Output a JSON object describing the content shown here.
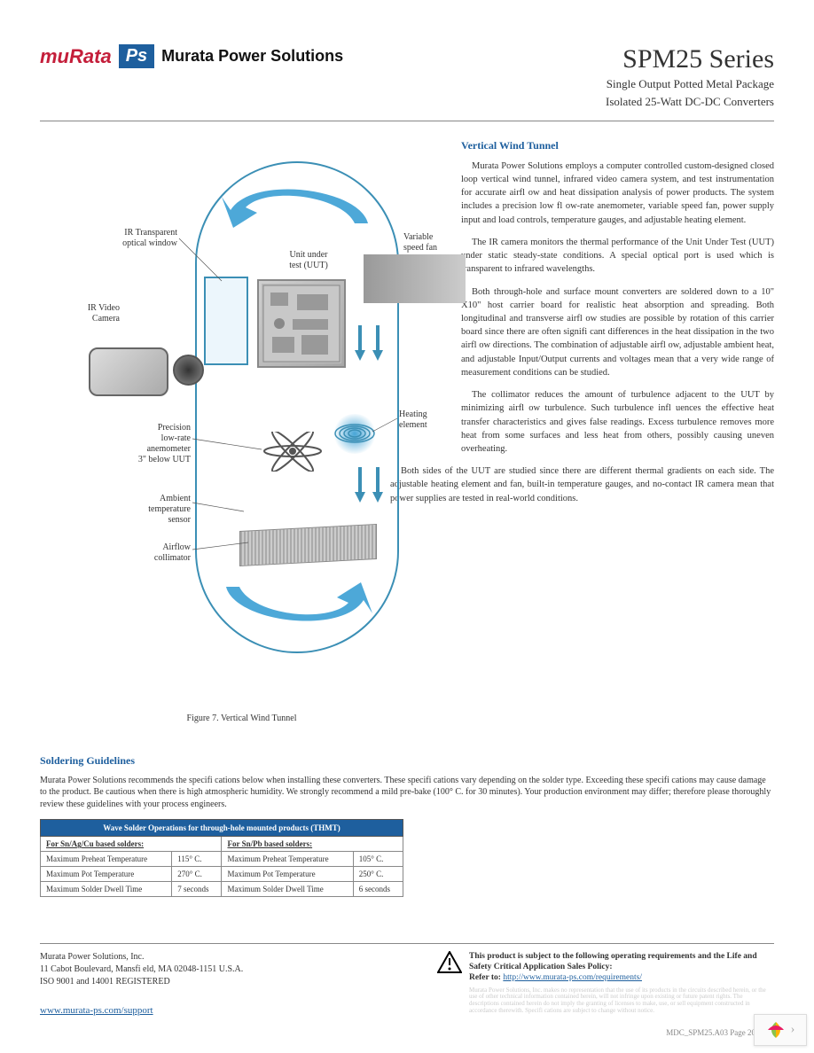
{
  "logo": {
    "murata": "muRata",
    "ps": "Ps",
    "text": "Murata Power Solutions"
  },
  "title": {
    "series": "SPM25 Series",
    "line1": "Single Output Potted Metal Package",
    "line2": "Isolated 25-Watt DC-DC Converters"
  },
  "section1": {
    "heading": "Vertical Wind Tunnel",
    "p1": "Murata Power Solutions employs a computer controlled custom-designed closed loop vertical wind tunnel, infrared video camera system, and test instrumentation for accurate airfl ow and heat dissipation analysis of power products. The system includes a precision low fl ow-rate anemometer, variable speed fan, power supply input and load controls, temperature gauges, and adjustable heating element.",
    "p2": "The IR camera monitors the thermal performance of the Unit Under Test (UUT) under static steady-state conditions. A special optical port is used which is transparent to infrared wavelengths.",
    "p3": "Both through-hole and surface mount converters are soldered down to a 10\" X10\" host carrier board for realistic heat absorption and spreading. Both longitudinal and transverse airfl ow studies are possible by rotation of this carrier board since there are often signifi cant differences in the heat dissipation in the two airfl ow directions. The combination of adjustable airfl ow, adjustable ambient heat, and adjustable Input/Output currents and voltages mean that a very wide range of measurement conditions can be studied.",
    "p4": "The collimator reduces the amount of turbulence adjacent to the UUT by minimizing airfl ow turbulence. Such turbulence infl uences the effective heat transfer characteristics and gives false readings. Excess turbulence removes more heat from some surfaces and less heat from others, possibly causing uneven overheating.",
    "p5": "Both sides of the UUT are studied since there are different thermal gradients on each side. The adjustable heating element and fan, built-in temperature gauges, and no-contact IR camera mean that power supplies are tested in real-world conditions."
  },
  "diagram": {
    "labels": {
      "ir_window": "IR Transparent\noptical window",
      "ir_camera": "IR Video\nCamera",
      "anemometer": "Precision\nlow-rate\nanemometer\n3\" below UUT",
      "ambient": "Ambient\ntemperature\nsensor",
      "collimator": "Airflow\ncollimator",
      "uut": "Unit under\ntest (UUT)",
      "fan": "Variable\nspeed fan",
      "heating": "Heating\nelement"
    },
    "caption": "Figure 7. Vertical Wind Tunnel",
    "colors": {
      "stroke": "#3b8fb5",
      "fill": "#4da8d8"
    }
  },
  "soldering": {
    "heading": "Soldering Guidelines",
    "para": "Murata Power Solutions recommends the specifi cations below when installing these converters. These specifi cations vary depending on the solder type. Exceeding these specifi cations may cause damage to the product. Be cautious when there is high atmospheric humidity. We strongly recommend a mild pre-bake (100° C. for 30 minutes). Your production environment may differ; therefore please thoroughly review these guidelines with your process engineers.",
    "table": {
      "header": "Wave Solder Operations for through-hole mounted products (THMT)",
      "sub1": "For Sn/Ag/Cu based solders:",
      "sub2": "For Sn/Pb based solders:",
      "rows": [
        [
          "Maximum Preheat Temperature",
          "115° C.",
          "Maximum Preheat Temperature",
          "105° C."
        ],
        [
          "Maximum Pot Temperature",
          "270° C.",
          "Maximum Pot Temperature",
          "250° C."
        ],
        [
          "Maximum Solder Dwell Time",
          "7 seconds",
          "Maximum Solder Dwell Time",
          "6 seconds"
        ]
      ]
    }
  },
  "footer": {
    "company": "Murata Power Solutions, Inc.",
    "address": "11 Cabot Boulevard, Mansfi eld, MA 02048-1151 U.S.A.",
    "iso": "ISO 9001 and 14001 REGISTERED",
    "url": "www.murata-ps.com/support",
    "warning": "This product is subject to the following operating requirements and the Life and Safety Critical Application Sales Policy:",
    "refer": "Refer to:",
    "refer_url": "http://www.murata-ps.com/requirements/",
    "page": "MDC_SPM25.A03  Page 20 of 20"
  }
}
